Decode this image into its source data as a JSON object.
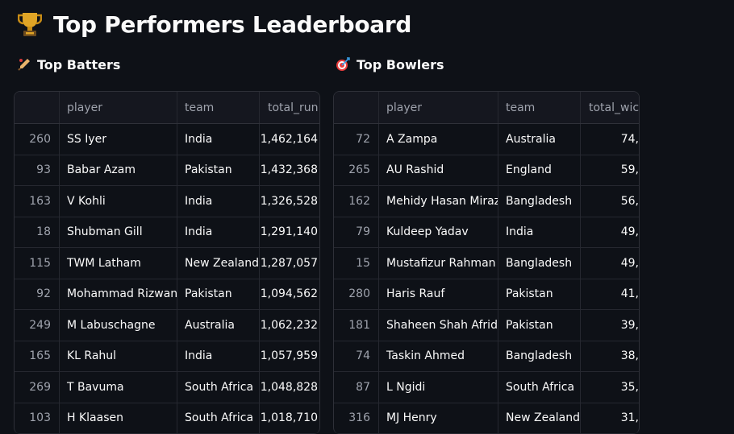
{
  "page": {
    "title": "Top Performers Leaderboard",
    "title_icon": "trophy-icon"
  },
  "batters": {
    "heading": "Top Batters",
    "heading_icon": "cricket-bat-icon",
    "columns": [
      "",
      "player",
      "team",
      "total_runs"
    ],
    "rows": [
      {
        "idx": "260",
        "player": "SS Iyer",
        "team": "India",
        "value": "1,462,164"
      },
      {
        "idx": "93",
        "player": "Babar Azam",
        "team": "Pakistan",
        "value": "1,432,368"
      },
      {
        "idx": "163",
        "player": "V Kohli",
        "team": "India",
        "value": "1,326,528"
      },
      {
        "idx": "18",
        "player": "Shubman Gill",
        "team": "India",
        "value": "1,291,140"
      },
      {
        "idx": "115",
        "player": "TWM Latham",
        "team": "New Zealand",
        "value": "1,287,057"
      },
      {
        "idx": "92",
        "player": "Mohammad Rizwan",
        "team": "Pakistan",
        "value": "1,094,562"
      },
      {
        "idx": "249",
        "player": "M Labuschagne",
        "team": "Australia",
        "value": "1,062,232"
      },
      {
        "idx": "165",
        "player": "KL Rahul",
        "team": "India",
        "value": "1,057,959"
      },
      {
        "idx": "269",
        "player": "T Bavuma",
        "team": "South Africa",
        "value": "1,048,828"
      },
      {
        "idx": "103",
        "player": "H Klaasen",
        "team": "South Africa",
        "value": "1,018,710"
      }
    ]
  },
  "bowlers": {
    "heading": "Top Bowlers",
    "heading_icon": "target-icon",
    "columns": [
      "",
      "player",
      "team",
      "total_wick"
    ],
    "rows": [
      {
        "idx": "72",
        "player": "A Zampa",
        "team": "Australia",
        "value": "74,"
      },
      {
        "idx": "265",
        "player": "AU Rashid",
        "team": "England",
        "value": "59,"
      },
      {
        "idx": "162",
        "player": "Mehidy Hasan Miraz",
        "team": "Bangladesh",
        "value": "56,"
      },
      {
        "idx": "79",
        "player": "Kuldeep Yadav",
        "team": "India",
        "value": "49,"
      },
      {
        "idx": "15",
        "player": "Mustafizur Rahman",
        "team": "Bangladesh",
        "value": "49,"
      },
      {
        "idx": "280",
        "player": "Haris Rauf",
        "team": "Pakistan",
        "value": "41,"
      },
      {
        "idx": "181",
        "player": "Shaheen Shah Afridi",
        "team": "Pakistan",
        "value": "39,"
      },
      {
        "idx": "74",
        "player": "Taskin Ahmed",
        "team": "Bangladesh",
        "value": "38,"
      },
      {
        "idx": "87",
        "player": "L Ngidi",
        "team": "South Africa",
        "value": "35,"
      },
      {
        "idx": "316",
        "player": "MJ Henry",
        "team": "New Zealand",
        "value": "31,"
      }
    ]
  }
}
